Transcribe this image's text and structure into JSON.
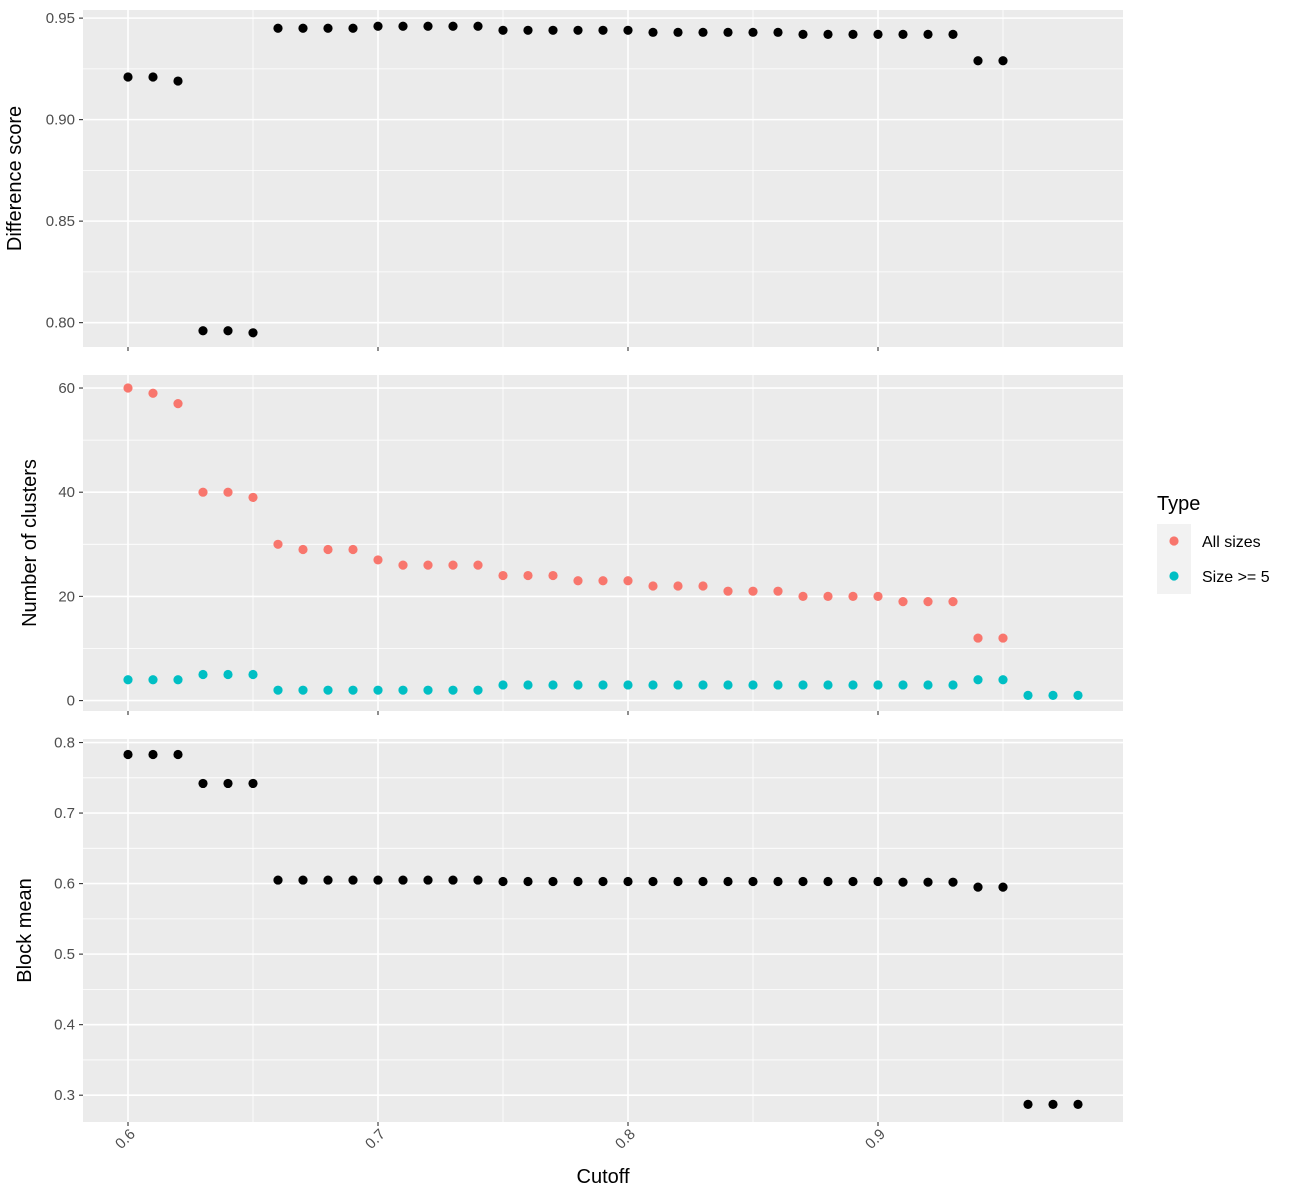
{
  "chart_data": [
    {
      "id": "difference-score",
      "type": "scatter",
      "ylabel": "Difference score",
      "xlabel": "Cutoff",
      "xlim": [
        0.582,
        0.998
      ],
      "ylim": [
        0.788,
        0.954
      ],
      "xticks": [
        "0.6",
        "0.7",
        "0.8",
        "0.9"
      ],
      "yticks": [
        "0.80",
        "0.85",
        "0.90",
        "0.95"
      ],
      "series": [
        {
          "color": "#000000",
          "x": [
            0.6,
            0.61,
            0.62,
            0.63,
            0.64,
            0.65,
            0.66,
            0.67,
            0.68,
            0.69,
            0.7,
            0.71,
            0.72,
            0.73,
            0.74,
            0.75,
            0.76,
            0.77,
            0.78,
            0.79,
            0.8,
            0.81,
            0.82,
            0.83,
            0.84,
            0.85,
            0.86,
            0.87,
            0.88,
            0.89,
            0.9,
            0.91,
            0.92,
            0.93,
            0.94,
            0.95
          ],
          "y": [
            0.921,
            0.921,
            0.919,
            0.796,
            0.796,
            0.795,
            0.945,
            0.945,
            0.945,
            0.945,
            0.946,
            0.946,
            0.946,
            0.946,
            0.946,
            0.944,
            0.944,
            0.944,
            0.944,
            0.944,
            0.944,
            0.943,
            0.943,
            0.943,
            0.943,
            0.943,
            0.943,
            0.942,
            0.942,
            0.942,
            0.942,
            0.942,
            0.942,
            0.942,
            0.929,
            0.929
          ]
        }
      ]
    },
    {
      "id": "number-of-clusters",
      "type": "scatter",
      "ylabel": "Number of clusters",
      "xlabel": "Cutoff",
      "xlim": [
        0.582,
        0.998
      ],
      "ylim": [
        -2,
        62.5
      ],
      "xticks": [
        "0.6",
        "0.7",
        "0.8",
        "0.9"
      ],
      "yticks": [
        "0",
        "20",
        "40",
        "60"
      ],
      "legend": {
        "title": "Type",
        "position": "right",
        "entries": [
          {
            "label": "All sizes",
            "color": "#F8766D"
          },
          {
            "label": "Size >= 5",
            "color": "#00BFC4"
          }
        ]
      },
      "series": [
        {
          "name": "All sizes",
          "color": "#F8766D",
          "x": [
            0.6,
            0.61,
            0.62,
            0.63,
            0.64,
            0.65,
            0.66,
            0.67,
            0.68,
            0.69,
            0.7,
            0.71,
            0.72,
            0.73,
            0.74,
            0.75,
            0.76,
            0.77,
            0.78,
            0.79,
            0.8,
            0.81,
            0.82,
            0.83,
            0.84,
            0.85,
            0.86,
            0.87,
            0.88,
            0.89,
            0.9,
            0.91,
            0.92,
            0.93,
            0.94,
            0.95
          ],
          "y": [
            60,
            59,
            57,
            40,
            40,
            39,
            30,
            29,
            29,
            29,
            27,
            26,
            26,
            26,
            26,
            24,
            24,
            24,
            23,
            23,
            23,
            22,
            22,
            22,
            21,
            21,
            21,
            20,
            20,
            20,
            20,
            19,
            19,
            19,
            12,
            12
          ]
        },
        {
          "name": "Size >= 5",
          "color": "#00BFC4",
          "x": [
            0.6,
            0.61,
            0.62,
            0.63,
            0.64,
            0.65,
            0.66,
            0.67,
            0.68,
            0.69,
            0.7,
            0.71,
            0.72,
            0.73,
            0.74,
            0.75,
            0.76,
            0.77,
            0.78,
            0.79,
            0.8,
            0.81,
            0.82,
            0.83,
            0.84,
            0.85,
            0.86,
            0.87,
            0.88,
            0.89,
            0.9,
            0.91,
            0.92,
            0.93,
            0.94,
            0.95,
            0.96,
            0.97,
            0.98
          ],
          "y": [
            4,
            4,
            4,
            5,
            5,
            5,
            2,
            2,
            2,
            2,
            2,
            2,
            2,
            2,
            2,
            3,
            3,
            3,
            3,
            3,
            3,
            3,
            3,
            3,
            3,
            3,
            3,
            3,
            3,
            3,
            3,
            3,
            3,
            3,
            4,
            4,
            1,
            1,
            1
          ]
        }
      ]
    },
    {
      "id": "block-mean",
      "type": "scatter",
      "ylabel": "Block mean",
      "xlabel": "Cutoff",
      "xlim": [
        0.582,
        0.998
      ],
      "ylim": [
        0.262,
        0.805
      ],
      "xticks": [
        "0.6",
        "0.7",
        "0.8",
        "0.9"
      ],
      "yticks": [
        "0.3",
        "0.4",
        "0.5",
        "0.6",
        "0.7",
        "0.8"
      ],
      "series": [
        {
          "color": "#000000",
          "x": [
            0.6,
            0.61,
            0.62,
            0.63,
            0.64,
            0.65,
            0.66,
            0.67,
            0.68,
            0.69,
            0.7,
            0.71,
            0.72,
            0.73,
            0.74,
            0.75,
            0.76,
            0.77,
            0.78,
            0.79,
            0.8,
            0.81,
            0.82,
            0.83,
            0.84,
            0.85,
            0.86,
            0.87,
            0.88,
            0.89,
            0.9,
            0.91,
            0.92,
            0.93,
            0.94,
            0.95,
            0.96,
            0.97,
            0.98
          ],
          "y": [
            0.783,
            0.783,
            0.783,
            0.742,
            0.742,
            0.742,
            0.605,
            0.605,
            0.605,
            0.605,
            0.605,
            0.605,
            0.605,
            0.605,
            0.605,
            0.603,
            0.603,
            0.603,
            0.603,
            0.603,
            0.603,
            0.603,
            0.603,
            0.603,
            0.603,
            0.603,
            0.603,
            0.603,
            0.603,
            0.603,
            0.603,
            0.602,
            0.602,
            0.602,
            0.595,
            0.595,
            0.287,
            0.287,
            0.287
          ]
        }
      ]
    }
  ]
}
